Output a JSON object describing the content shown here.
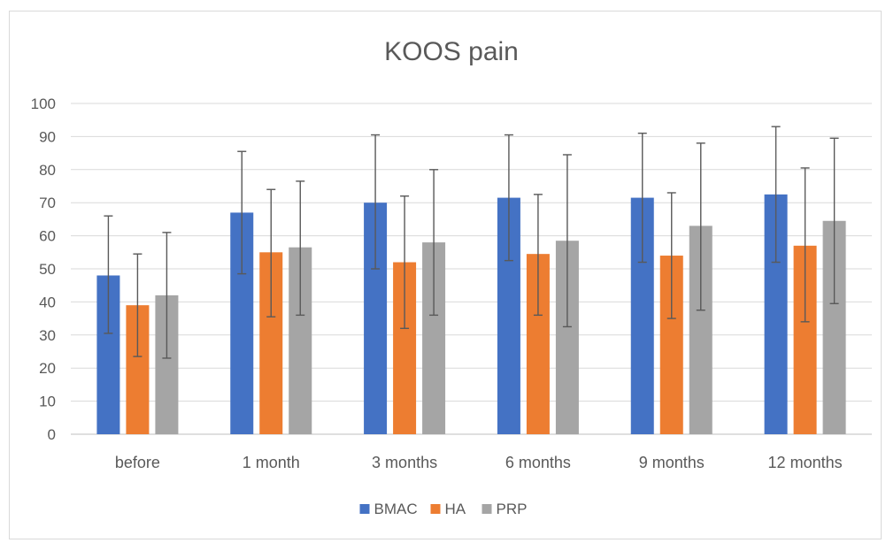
{
  "chart_data": {
    "type": "bar",
    "title": "KOOS pain",
    "xlabel": "",
    "ylabel": "",
    "ylim": [
      0,
      100
    ],
    "yticks": [
      0,
      10,
      20,
      30,
      40,
      50,
      60,
      70,
      80,
      90,
      100
    ],
    "grid": true,
    "legend_position": "bottom",
    "categories": [
      "before",
      "1 month",
      "3 months",
      "6 months",
      "9 months",
      "12 months"
    ],
    "series": [
      {
        "name": "BMAC",
        "color": "#4472c4",
        "values": [
          48,
          67,
          70,
          71.5,
          71.5,
          72.5
        ],
        "error_low": [
          30.5,
          48.5,
          50,
          52.5,
          52,
          52
        ],
        "error_high": [
          66,
          85.5,
          90.5,
          90.5,
          91,
          93
        ]
      },
      {
        "name": "HA",
        "color": "#ed7d31",
        "values": [
          39,
          55,
          52,
          54.5,
          54,
          57
        ],
        "error_low": [
          23.5,
          35.5,
          32,
          36,
          35,
          34
        ],
        "error_high": [
          54.5,
          74,
          72,
          72.5,
          73,
          80.5
        ]
      },
      {
        "name": "PRP",
        "color": "#a5a5a5",
        "values": [
          42,
          56.5,
          58,
          58.5,
          63,
          64.5
        ],
        "error_low": [
          23,
          36,
          36,
          32.5,
          37.5,
          39.5
        ],
        "error_high": [
          61,
          76.5,
          80,
          84.5,
          88,
          89.5
        ]
      }
    ]
  }
}
